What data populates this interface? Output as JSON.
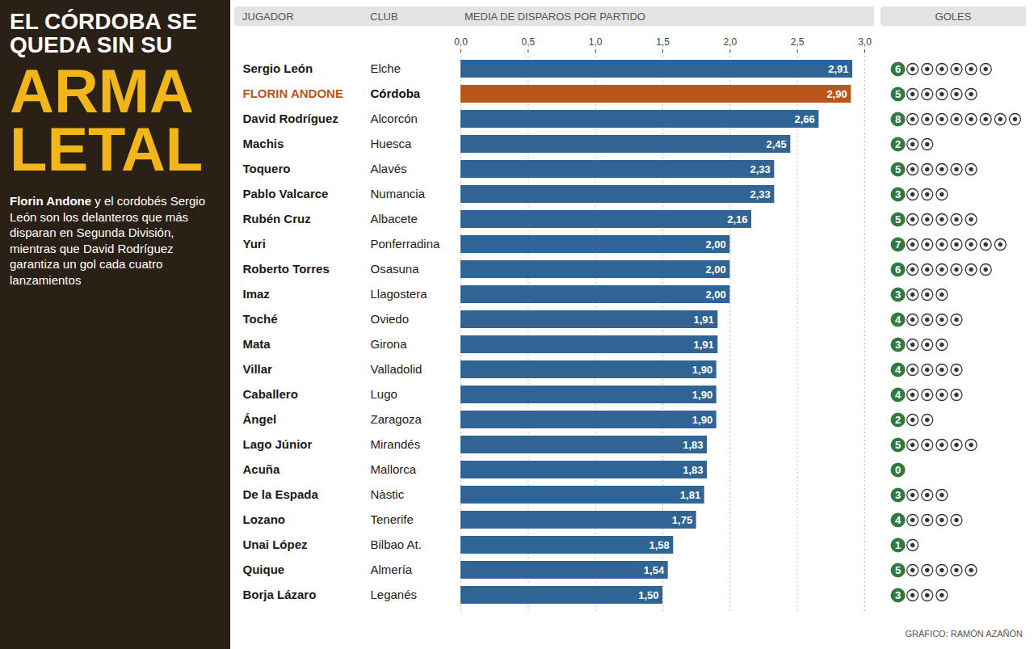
{
  "chart_data": {
    "type": "bar",
    "orientation": "horizontal",
    "title": [
      "EL CÓRDOBA SE QUEDA SIN SU",
      "ARMA LETAL"
    ],
    "subtitle": "Florin Andone y el cordobés Sergio León son los delanteros que más disparan en Segunda División, mientras que David Rodríguez garantiza un gol cada cuatro lanzamientos",
    "subtitle_bold": "Florin Andone",
    "columns": {
      "player": "JUGADOR",
      "club": "CLUB",
      "goals": "GOLES"
    },
    "xlabel": "MEDIA DE DISPAROS POR PARTIDO",
    "categories": [
      "Sergio León",
      "FLORIN ANDONE",
      "David Rodríguez",
      "Machis",
      "Toquero",
      "Pablo Valcarce",
      "Rubén Cruz",
      "Yuri",
      "Roberto Torres",
      "Imaz",
      "Toché",
      "Mata",
      "Villar",
      "Caballero",
      "Ángel",
      "Lago Júnior",
      "Acuña",
      "De la Espada",
      "Lozano",
      "Unai López",
      "Quique",
      "Borja Lázaro"
    ],
    "clubs": [
      "Elche",
      "Córdoba",
      "Alcorcón",
      "Huesca",
      "Alavés",
      "Numancia",
      "Albacete",
      "Ponferradina",
      "Osasuna",
      "Llagostera",
      "Oviedo",
      "Girona",
      "Valladolid",
      "Lugo",
      "Zaragoza",
      "Mirandés",
      "Mallorca",
      "Nàstic",
      "Tenerife",
      "Bilbao At.",
      "Almería",
      "Leganés"
    ],
    "values": [
      2.91,
      2.9,
      2.66,
      2.45,
      2.33,
      2.33,
      2.16,
      2.0,
      2.0,
      2.0,
      1.91,
      1.91,
      1.9,
      1.9,
      1.9,
      1.83,
      1.83,
      1.81,
      1.75,
      1.58,
      1.54,
      1.5
    ],
    "value_labels": [
      "2,91",
      "2,90",
      "2,66",
      "2,45",
      "2,33",
      "2,33",
      "2,16",
      "2,00",
      "2,00",
      "2,00",
      "1,91",
      "1,91",
      "1,90",
      "1,90",
      "1,90",
      "1,83",
      "1,83",
      "1,81",
      "1,75",
      "1,58",
      "1,54",
      "1,50"
    ],
    "goals": [
      6,
      5,
      8,
      2,
      5,
      3,
      5,
      7,
      6,
      3,
      4,
      3,
      4,
      4,
      2,
      5,
      0,
      3,
      4,
      1,
      5,
      3
    ],
    "colors": [
      "#2f6494",
      "#b8561c",
      "#2f6494",
      "#2f6494",
      "#2f6494",
      "#2f6494",
      "#2f6494",
      "#2f6494",
      "#2f6494",
      "#2f6494",
      "#2f6494",
      "#2f6494",
      "#2f6494",
      "#2f6494",
      "#2f6494",
      "#2f6494",
      "#2f6494",
      "#2f6494",
      "#2f6494",
      "#2f6494",
      "#2f6494",
      "#2f6494"
    ],
    "xlim": [
      0,
      3
    ],
    "xticks": [
      {
        "value": 0,
        "label": "0,0"
      },
      {
        "value": 0.5,
        "label": "0,5"
      },
      {
        "value": 1,
        "label": "1,0"
      },
      {
        "value": 1.5,
        "label": "1,5"
      },
      {
        "value": 2,
        "label": "2,0"
      },
      {
        "value": 2.5,
        "label": "2,5"
      },
      {
        "value": 3,
        "label": "3,0"
      }
    ],
    "grid": true,
    "data_labels": true,
    "tick_labels": "x",
    "source": "GRÁFICO: RAMÓN AZAÑÓN"
  }
}
